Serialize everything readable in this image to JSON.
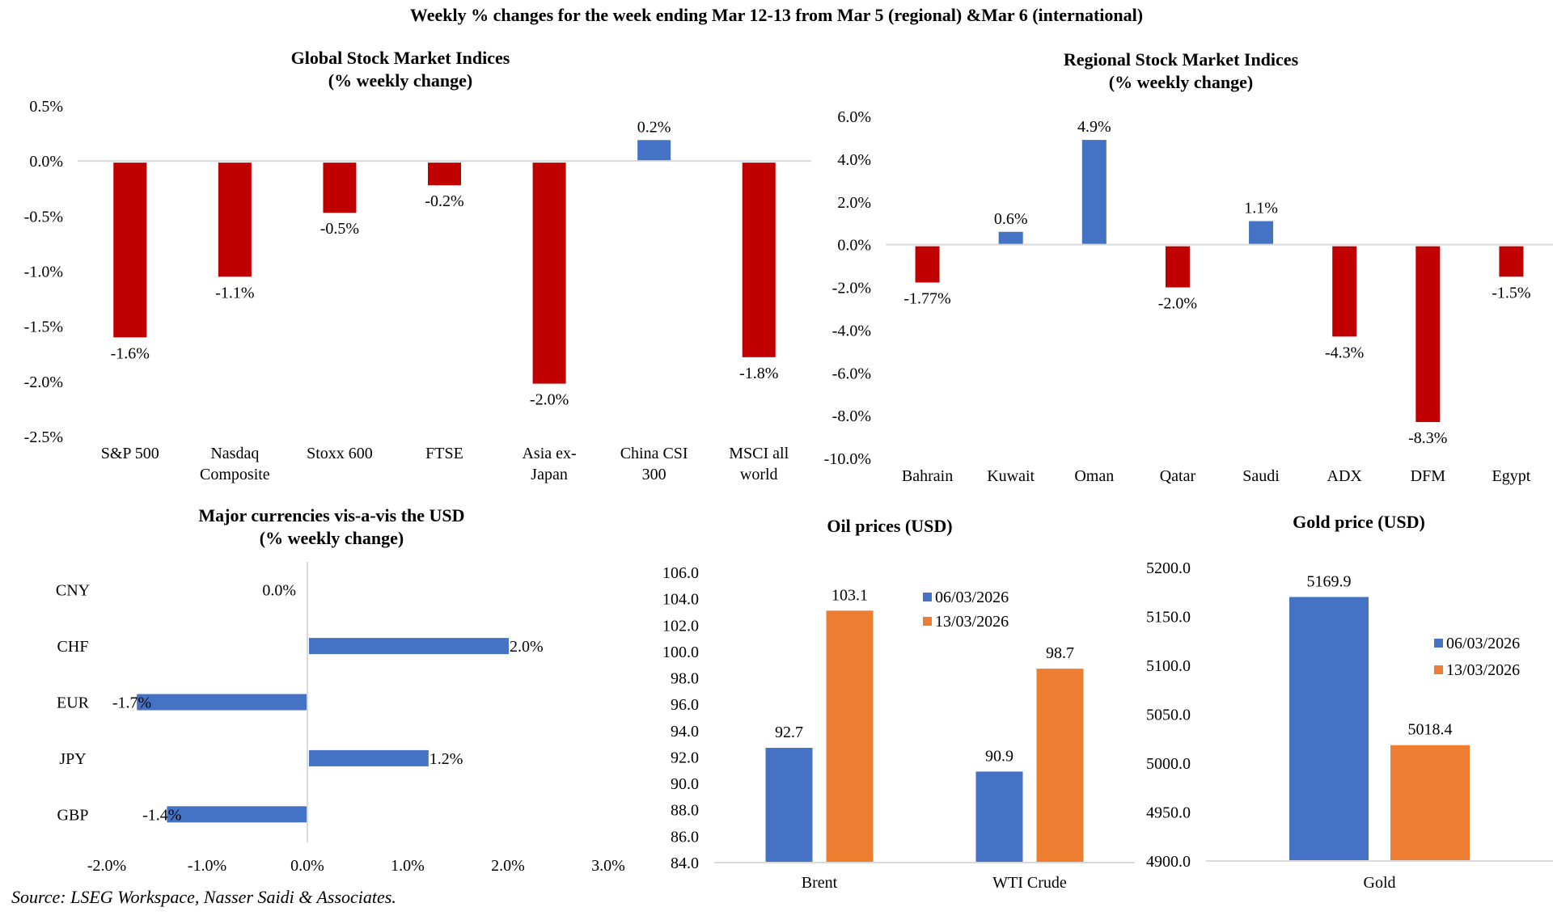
{
  "page": {
    "main_title": "Weekly % changes for the week ending Mar 12-13 from Mar 5 (regional) &Mar 6 (international)",
    "source": "Source: LSEG Workspace, Nasser Saidi & Associates."
  },
  "colors": {
    "negative": "#C00000",
    "positive": "#4472C4",
    "series_1": "#4472C4",
    "series_2": "#ED7D31",
    "axis": "#D9D9D9"
  },
  "chart_data": [
    {
      "id": "global",
      "type": "bar",
      "title": "Global Stock Market Indices",
      "subtitle": "(% weekly change)",
      "categories": [
        [
          "S&P 500"
        ],
        [
          "Nasdaq",
          "Composite"
        ],
        [
          "Stoxx 600"
        ],
        [
          "FTSE"
        ],
        [
          "Asia ex-",
          "Japan"
        ],
        [
          "China CSI",
          "300"
        ],
        [
          "MSCI all",
          "world"
        ]
      ],
      "values": [
        -1.6,
        -1.05,
        -0.47,
        -0.22,
        -2.02,
        0.19,
        -1.78
      ],
      "data_labels": [
        "-1.6%",
        "-1.1%",
        "-0.5%",
        "-0.2%",
        "-2.0%",
        "0.2%",
        "-1.8%"
      ],
      "yticks": [
        "0.5%",
        "0.0%",
        "-0.5%",
        "-1.0%",
        "-1.5%",
        "-2.0%",
        "-2.5%"
      ],
      "ytick_values": [
        0.5,
        0.0,
        -0.5,
        -1.0,
        -1.5,
        -2.0,
        -2.5
      ],
      "ylim": [
        -2.5,
        0.5
      ],
      "xlabel": "",
      "ylabel": "",
      "grid": false,
      "color_rule": "positive blue, negative red"
    },
    {
      "id": "regional",
      "type": "bar",
      "title": "Regional Stock Market Indices",
      "subtitle": "(% weekly change)",
      "categories": [
        [
          "Bahrain"
        ],
        [
          "Kuwait"
        ],
        [
          "Oman"
        ],
        [
          "Qatar"
        ],
        [
          "Saudi"
        ],
        [
          "ADX"
        ],
        [
          "DFM"
        ],
        [
          "Egypt"
        ]
      ],
      "values": [
        -1.77,
        0.6,
        4.9,
        -2.0,
        1.1,
        -4.3,
        -8.3,
        -1.5
      ],
      "data_labels": [
        "-1.77%",
        "0.6%",
        "4.9%",
        "-2.0%",
        "1.1%",
        "-4.3%",
        "-8.3%",
        "-1.5%"
      ],
      "yticks": [
        "6.0%",
        "4.0%",
        "2.0%",
        "0.0%",
        "-2.0%",
        "-4.0%",
        "-6.0%",
        "-8.0%",
        "-10.0%"
      ],
      "ytick_values": [
        6,
        4,
        2,
        0,
        -2,
        -4,
        -6,
        -8,
        -10
      ],
      "ylim": [
        -10,
        6
      ],
      "xlabel": "",
      "ylabel": "",
      "grid": false,
      "color_rule": "positive blue, negative red"
    },
    {
      "id": "currencies",
      "type": "bar",
      "orientation": "horizontal",
      "title": "Major currencies vis-a-vis the USD",
      "subtitle": "(% weekly change)",
      "categories": [
        "CNY",
        "CHF",
        "EUR",
        "JPY",
        "GBP"
      ],
      "values": [
        0.0,
        2.0,
        -1.7,
        1.2,
        -1.4
      ],
      "data_labels": [
        "0.0%",
        "2.0%",
        "-1.7%",
        "1.2%",
        "-1.4%"
      ],
      "xticks": [
        "-2.0%",
        "-1.0%",
        "0.0%",
        "1.0%",
        "2.0%",
        "3.0%"
      ],
      "xtick_values": [
        -2,
        -1,
        0,
        1,
        2,
        3
      ],
      "xlim": [
        -2,
        3
      ],
      "xlabel": "",
      "ylabel": "",
      "grid": false
    },
    {
      "id": "oil",
      "type": "bar",
      "title": "Oil prices (USD)",
      "categories": [
        "Brent",
        "WTI Crude"
      ],
      "series": [
        {
          "name": "06/03/2026",
          "values": [
            92.7,
            90.9
          ],
          "data_labels": [
            "92.7",
            "90.9"
          ]
        },
        {
          "name": "13/03/2026",
          "values": [
            103.1,
            98.7
          ],
          "data_labels": [
            "103.1",
            "98.7"
          ]
        }
      ],
      "yticks": [
        "106.0",
        "104.0",
        "102.0",
        "100.0",
        "98.0",
        "96.0",
        "94.0",
        "92.0",
        "90.0",
        "88.0",
        "86.0",
        "84.0"
      ],
      "ytick_values": [
        106,
        104,
        102,
        100,
        98,
        96,
        94,
        92,
        90,
        88,
        86,
        84
      ],
      "ylim": [
        84,
        106
      ],
      "legend": "top-right",
      "xlabel": "",
      "ylabel": "",
      "grid": false
    },
    {
      "id": "gold",
      "type": "bar",
      "title": "Gold price (USD)",
      "categories": [
        "Gold"
      ],
      "series": [
        {
          "name": "06/03/2026",
          "values": [
            5169.9
          ],
          "data_labels": [
            "5169.9"
          ]
        },
        {
          "name": "13/03/2026",
          "values": [
            5018.4
          ],
          "data_labels": [
            "5018.4"
          ]
        }
      ],
      "yticks": [
        "5200.0",
        "5150.0",
        "5100.0",
        "5050.0",
        "5000.0",
        "4950.0",
        "4900.0"
      ],
      "ytick_values": [
        5200,
        5150,
        5100,
        5050,
        5000,
        4950,
        4900
      ],
      "ylim": [
        4900,
        5200
      ],
      "legend": "right",
      "xlabel": "",
      "ylabel": "",
      "grid": false
    }
  ]
}
